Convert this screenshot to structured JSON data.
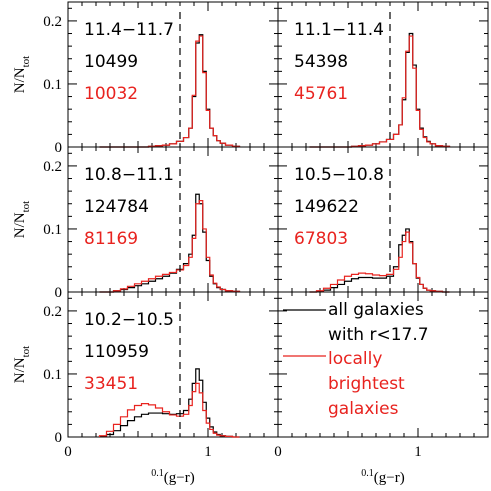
{
  "chart_data": {
    "type": "line",
    "title": "",
    "xlabel": {
      "sup": "0.1",
      "main": "(g−r)"
    },
    "ylabel": {
      "main": "N/N",
      "sub": "tot"
    },
    "xlim": [
      0,
      1.5
    ],
    "ylim": [
      0,
      0.23
    ],
    "xticks": [
      0,
      1
    ],
    "yticks": [
      0,
      0.1,
      0.2
    ],
    "ytick_labels": [
      "0",
      "0.1",
      "0.2"
    ],
    "xtick_labels": [
      "0",
      "1"
    ],
    "cut_line_x": 0.8,
    "colors": {
      "all": "#000000",
      "brightest": "#e8231f"
    },
    "x_centers": [
      0.25,
      0.3,
      0.35,
      0.4,
      0.45,
      0.5,
      0.55,
      0.6,
      0.65,
      0.7,
      0.75,
      0.8,
      0.85,
      0.875,
      0.9,
      0.925,
      0.95,
      0.975,
      1.0,
      1.025,
      1.05,
      1.075,
      1.1,
      1.15,
      1.2
    ],
    "legend": {
      "entries": [
        {
          "lines": [
            "all galaxies",
            "with r<17.7"
          ],
          "color": "#000000"
        },
        {
          "lines": [
            "locally",
            "brightest",
            "galaxies"
          ],
          "color": "#e8231f"
        }
      ]
    },
    "panels": [
      {
        "range": "11.4−11.7",
        "n_all": "10499",
        "n_bright": "10032",
        "all": [
          0,
          0,
          0,
          0,
          0,
          0,
          0,
          0.001,
          0.002,
          0.003,
          0.005,
          0.009,
          0.015,
          0.03,
          0.08,
          0.165,
          0.178,
          0.12,
          0.06,
          0.03,
          0.018,
          0.01,
          0.006,
          0.003,
          0.001
        ],
        "bright": [
          0,
          0,
          0,
          0,
          0,
          0,
          0,
          0.001,
          0.002,
          0.003,
          0.005,
          0.009,
          0.015,
          0.03,
          0.082,
          0.168,
          0.176,
          0.118,
          0.058,
          0.03,
          0.018,
          0.01,
          0.006,
          0.003,
          0.001
        ]
      },
      {
        "range": "11.1−11.4",
        "n_all": "54398",
        "n_bright": "45761",
        "all": [
          0,
          0,
          0,
          0,
          0,
          0,
          0.001,
          0.002,
          0.003,
          0.005,
          0.008,
          0.012,
          0.02,
          0.035,
          0.075,
          0.15,
          0.18,
          0.13,
          0.06,
          0.03,
          0.016,
          0.009,
          0.005,
          0.002,
          0.001
        ],
        "bright": [
          0,
          0,
          0,
          0,
          0,
          0,
          0.001,
          0.002,
          0.003,
          0.005,
          0.008,
          0.012,
          0.02,
          0.035,
          0.078,
          0.152,
          0.176,
          0.125,
          0.058,
          0.028,
          0.015,
          0.008,
          0.005,
          0.002,
          0.001
        ]
      },
      {
        "range": "10.8−11.1",
        "n_all": "124784",
        "n_bright": "81169",
        "all": [
          0,
          0,
          0.002,
          0.004,
          0.007,
          0.01,
          0.013,
          0.017,
          0.021,
          0.025,
          0.03,
          0.036,
          0.045,
          0.06,
          0.09,
          0.155,
          0.14,
          0.095,
          0.05,
          0.025,
          0.013,
          0.007,
          0.004,
          0.002,
          0.001
        ],
        "bright": [
          0,
          0,
          0.002,
          0.005,
          0.009,
          0.013,
          0.017,
          0.021,
          0.025,
          0.028,
          0.031,
          0.035,
          0.042,
          0.055,
          0.085,
          0.14,
          0.145,
          0.1,
          0.055,
          0.027,
          0.014,
          0.008,
          0.004,
          0.002,
          0.001
        ]
      },
      {
        "range": "10.5−10.8",
        "n_all": "149622",
        "n_bright": "67803",
        "all": [
          0,
          0.001,
          0.003,
          0.007,
          0.012,
          0.017,
          0.021,
          0.023,
          0.023,
          0.022,
          0.022,
          0.025,
          0.04,
          0.075,
          0.09,
          0.1,
          0.08,
          0.045,
          0.022,
          0.012,
          0.006,
          0.003,
          0.002,
          0.001,
          0
        ],
        "bright": [
          0,
          0.002,
          0.006,
          0.012,
          0.019,
          0.025,
          0.028,
          0.03,
          0.029,
          0.027,
          0.026,
          0.028,
          0.036,
          0.055,
          0.08,
          0.095,
          0.078,
          0.045,
          0.023,
          0.012,
          0.006,
          0.003,
          0.002,
          0.001,
          0
        ]
      },
      {
        "range": "10.2−10.5",
        "n_all": "110959",
        "n_bright": "33451",
        "all": [
          0.001,
          0.004,
          0.01,
          0.018,
          0.026,
          0.032,
          0.036,
          0.038,
          0.038,
          0.037,
          0.036,
          0.037,
          0.042,
          0.06,
          0.085,
          0.108,
          0.09,
          0.055,
          0.03,
          0.016,
          0.008,
          0.004,
          0.002,
          0.001,
          0
        ],
        "bright": [
          0.002,
          0.009,
          0.02,
          0.032,
          0.043,
          0.05,
          0.053,
          0.051,
          0.046,
          0.04,
          0.035,
          0.033,
          0.036,
          0.05,
          0.072,
          0.085,
          0.07,
          0.042,
          0.022,
          0.012,
          0.006,
          0.003,
          0.002,
          0.001,
          0
        ]
      }
    ]
  }
}
